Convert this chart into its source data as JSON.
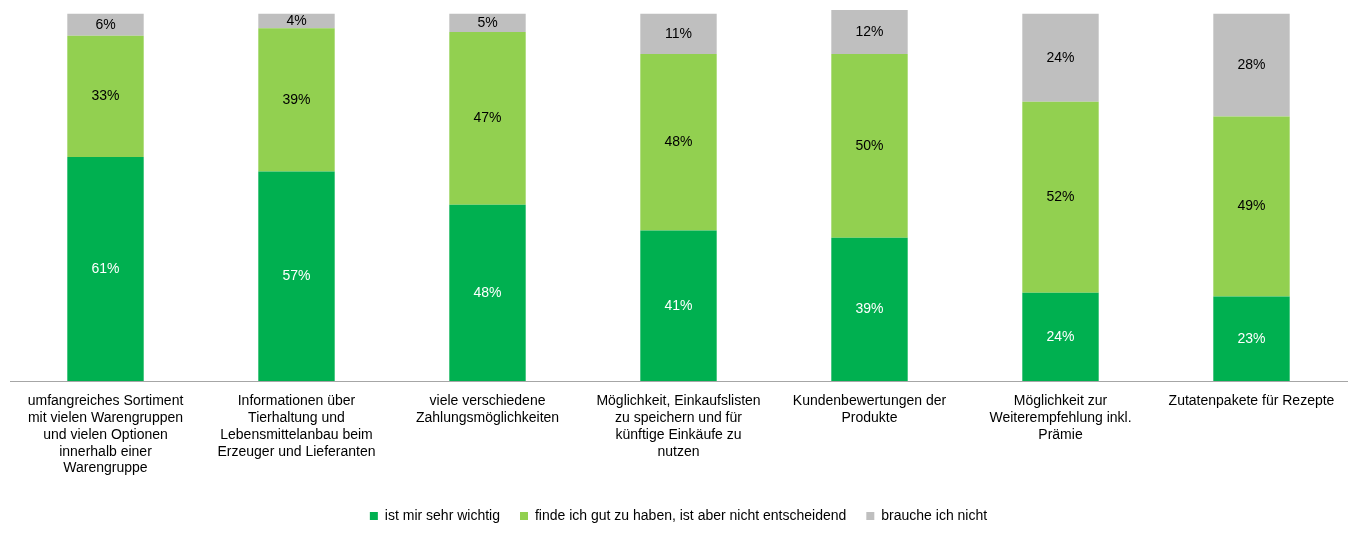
{
  "chart_data": {
    "type": "bar",
    "stacked": true,
    "legend": "bottom",
    "tick_labels": "x",
    "ylim": [
      0,
      101
    ],
    "categories": [
      "umfangreiches Sortiment mit vielen Warengruppen und vielen Optionen innerhalb einer Warengruppe",
      "Informationen über Tierhaltung und Lebensmittelanbau beim Erzeuger und Lieferanten",
      "viele verschiedene Zahlungsmöglichkeiten",
      "Möglichkeit, Einkaufslisten zu speichern und für künftige Einkäufe zu nutzen",
      "Kundenbewertungen der Produkte",
      "Möglichkeit zur Weiterempfehlung inkl. Prämie",
      "Zutatenpakete für Rezepte"
    ],
    "series": [
      {
        "name": "ist mir sehr wichtig",
        "color": "#00b050",
        "values": [
          61,
          57,
          48,
          41,
          39,
          24,
          23
        ],
        "value_labels": [
          "61%",
          "57%",
          "48%",
          "41%",
          "39%",
          "24%",
          "23%"
        ]
      },
      {
        "name": "finde ich gut zu haben, ist aber nicht entscheidend",
        "color": "#92d050",
        "values": [
          33,
          39,
          47,
          48,
          50,
          52,
          49
        ],
        "value_labels": [
          "33%",
          "39%",
          "47%",
          "48%",
          "50%",
          "52%",
          "49%"
        ]
      },
      {
        "name": "brauche ich nicht",
        "color": "#bfbfbf",
        "values": [
          6,
          4,
          5,
          11,
          12,
          24,
          28
        ],
        "value_labels": [
          "6%",
          "4%",
          "5%",
          "11%",
          "12%",
          "24%",
          "28%"
        ]
      }
    ]
  }
}
